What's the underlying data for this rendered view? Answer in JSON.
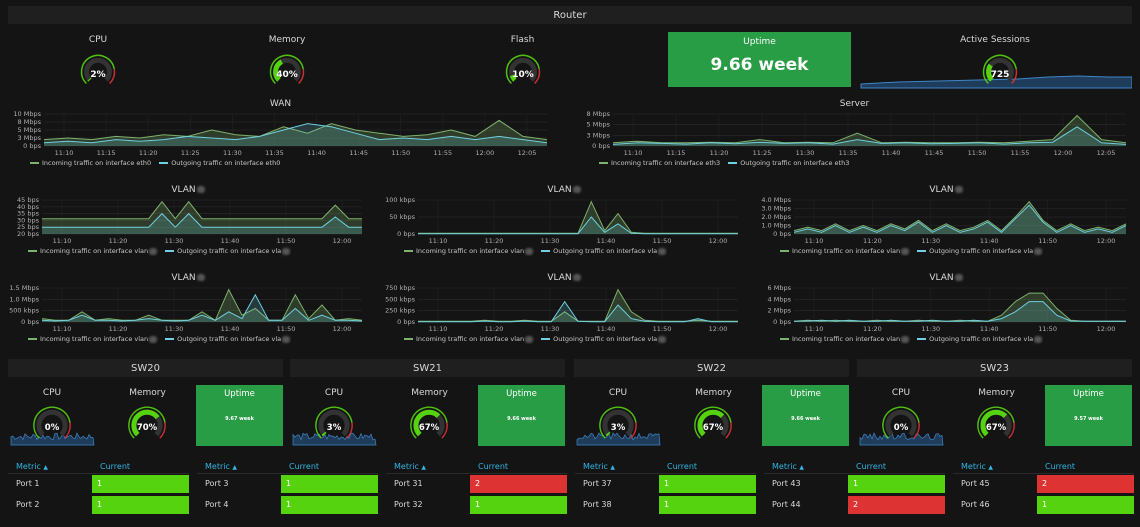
{
  "router": {
    "title": "Router",
    "cpu": {
      "label": "CPU",
      "value": "2%",
      "pct": 2
    },
    "memory": {
      "label": "Memory",
      "value": "40%",
      "pct": 40
    },
    "flash": {
      "label": "Flash",
      "value": "10%",
      "pct": 10
    },
    "uptime": {
      "label": "Uptime",
      "value": "9.66 week"
    },
    "sessions": {
      "label": "Active Sessions",
      "value": "725",
      "pct": 30
    }
  },
  "colors": {
    "incoming": "#7eb26d",
    "outgoing": "#6ed0e0",
    "ok": "#56d30f",
    "bad": "#dd3333",
    "uptime": "#299c46",
    "header": "#33b5e5"
  },
  "charts": [
    {
      "id": "wan",
      "title": "WAN",
      "ylabels": [
        "10 Mbps",
        "8 Mbps",
        "5 Mbps",
        "3 Mbps",
        "0 bps"
      ],
      "xlabels": [
        "11:10",
        "11:15",
        "11:20",
        "11:25",
        "11:30",
        "11:35",
        "11:40",
        "11:45",
        "11:50",
        "11:55",
        "12:00",
        "12:05"
      ],
      "legend": [
        "Incoming traffic on interface eth0",
        "Outgoing traffic on interface eth0"
      ]
    },
    {
      "id": "server",
      "title": "Server",
      "ylabels": [
        "8 Mbps",
        "5 Mbps",
        "3 Mbps",
        "0 bps"
      ],
      "xlabels": [
        "11:10",
        "11:15",
        "11:20",
        "11:25",
        "11:30",
        "11:35",
        "11:40",
        "11:45",
        "11:50",
        "11:55",
        "12:00",
        "12:05"
      ],
      "legend": [
        "Incoming traffic on interface eth3",
        "Outgoing traffic on interface eth3"
      ]
    },
    {
      "id": "vlan1",
      "title": "VLAN",
      "ylabels": [
        "45 bps",
        "40 bps",
        "35 bps",
        "30 bps",
        "25 bps",
        "20 bps"
      ],
      "xlabels": [
        "11:10",
        "11:20",
        "11:30",
        "11:40",
        "11:50",
        "12:00"
      ],
      "legend": [
        "Incoming traffic on interface vlan",
        "Outgoing traffic on interface vla"
      ]
    },
    {
      "id": "vlan2",
      "title": "VLAN",
      "ylabels": [
        "100 kbps",
        "50 kbps",
        "0 bps"
      ],
      "xlabels": [
        "11:10",
        "11:20",
        "11:30",
        "11:40",
        "11:50",
        "12:00"
      ],
      "legend": [
        "Incoming traffic on interface vlan",
        "Outgoing traffic on interface vla"
      ]
    },
    {
      "id": "vlan3",
      "title": "VLAN",
      "ylabels": [
        "4.0 Mbps",
        "3.0 Mbps",
        "2.0 Mbps",
        "1.0 Mbps",
        "0 bps"
      ],
      "xlabels": [
        "11:10",
        "11:20",
        "11:30",
        "11:40",
        "11:50",
        "12:00"
      ],
      "legend": [
        "Incoming traffic on interface vlan",
        "Outgoing traffic on interface vla"
      ]
    },
    {
      "id": "vlan4",
      "title": "VLAN",
      "ylabels": [
        "1.5 Mbps",
        "1.0 Mbps",
        "500 kbps",
        "0 bps"
      ],
      "xlabels": [
        "11:10",
        "11:20",
        "11:30",
        "11:40",
        "11:50",
        "12:00"
      ],
      "legend": [
        "Incoming traffic on interface vlan",
        "Outgoing traffic on interface vla"
      ]
    },
    {
      "id": "vlan5",
      "title": "VLAN",
      "ylabels": [
        "750 kbps",
        "500 kbps",
        "250 kbps",
        "0 bps"
      ],
      "xlabels": [
        "11:10",
        "11:20",
        "11:30",
        "11:40",
        "11:50",
        "12:00"
      ],
      "legend": [
        "Incoming traffic on interface vlan",
        "Outgoing traffic on interface vla"
      ]
    },
    {
      "id": "vlan6",
      "title": "VLAN",
      "ylabels": [
        "6 Mbps",
        "4 Mbps",
        "2 Mbps",
        "0 bps"
      ],
      "xlabels": [
        "11:10",
        "11:20",
        "11:30",
        "11:40",
        "11:50",
        "12:00"
      ],
      "legend": [
        "Incoming traffic on interface vlan",
        "Outgoing traffic on interface vla"
      ]
    }
  ],
  "switches": [
    {
      "title": "SW20",
      "cpu": {
        "label": "CPU",
        "value": "0%",
        "pct": 0
      },
      "memory": {
        "label": "Memory",
        "value": "70%",
        "pct": 70
      },
      "uptime": {
        "label": "Uptime",
        "value": "9.67 week"
      },
      "table": {
        "h1": "Metric",
        "h2": "Current",
        "rows": [
          {
            "metric": "Port 1",
            "current": "1",
            "state": "ok"
          },
          {
            "metric": "Port 2",
            "current": "1",
            "state": "ok"
          }
        ]
      }
    },
    {
      "title": "SW21",
      "cpu": {
        "label": "CPU",
        "value": "3%",
        "pct": 3
      },
      "memory": {
        "label": "Memory",
        "value": "67%",
        "pct": 67
      },
      "uptime": {
        "label": "Uptime",
        "value": "9.66 week"
      },
      "table": {
        "h1": "Metric",
        "h2": "Current",
        "rows": [
          {
            "metric": "Port 3",
            "current": "1",
            "state": "ok"
          },
          {
            "metric": "Port 4",
            "current": "1",
            "state": "ok"
          }
        ]
      }
    },
    {
      "title": "SW22",
      "cpu": {
        "label": "CPU",
        "value": "3%",
        "pct": 3
      },
      "memory": {
        "label": "Memory",
        "value": "67%",
        "pct": 67
      },
      "uptime": {
        "label": "Uptime",
        "value": "9.66 week"
      },
      "table": {
        "h1": "Metric",
        "h2": "Current",
        "rows": [
          {
            "metric": "Port 37",
            "current": "1",
            "state": "ok"
          },
          {
            "metric": "Port 38",
            "current": "1",
            "state": "ok"
          }
        ]
      }
    },
    {
      "title": "SW23",
      "cpu": {
        "label": "CPU",
        "value": "0%",
        "pct": 0
      },
      "memory": {
        "label": "Memory",
        "value": "67%",
        "pct": 67
      },
      "uptime": {
        "label": "Uptime",
        "value": "9.57 week"
      },
      "table": {
        "h1": "Metric",
        "h2": "Current",
        "rows": [
          {
            "metric": "Port 43",
            "current": "1",
            "state": "ok"
          },
          {
            "metric": "Port 44",
            "current": "2",
            "state": "bad"
          }
        ]
      }
    }
  ],
  "extra_tables": [
    {
      "h1": "Metric",
      "h2": "Current",
      "rows": [
        {
          "metric": "Port 31",
          "current": "2",
          "state": "bad"
        },
        {
          "metric": "Port 32",
          "current": "1",
          "state": "ok"
        }
      ]
    },
    {
      "h1": "Metric",
      "h2": "Current",
      "rows": [
        {
          "metric": "Port 45",
          "current": "2",
          "state": "bad"
        },
        {
          "metric": "Port 46",
          "current": "1",
          "state": "ok"
        }
      ]
    }
  ]
}
